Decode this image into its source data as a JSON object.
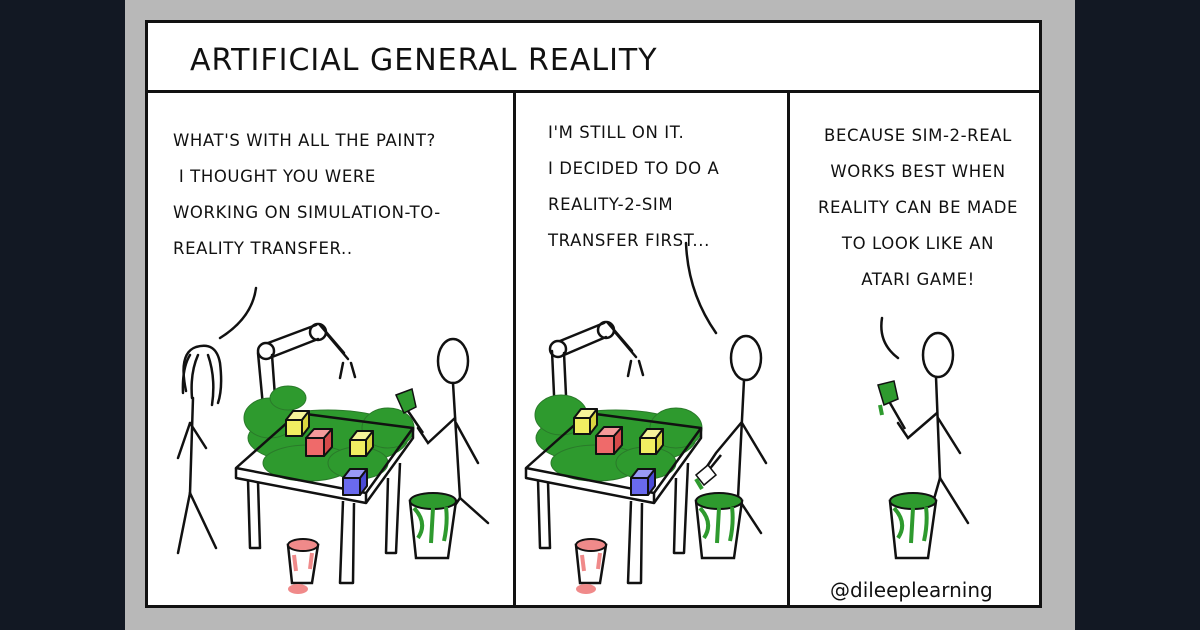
{
  "comic": {
    "title": "ARTIFICIAL GENERAL REALITY",
    "panels": [
      {
        "dialog": "WHAT'S WITH ALL THE PAINT?\n I THOUGHT YOU WERE\nWORKING ON SIMULATION-TO-\nREALITY TRANSFER.."
      },
      {
        "dialog": "I'M STILL ON IT.\nI DECIDED TO DO A\nREALITY-2-SIM\nTRANSFER FIRST..."
      },
      {
        "dialog": "BECAUSE SIM-2-REAL\nWORKS BEST WHEN\nREALITY CAN BE MADE\nTO LOOK LIKE AN\nATARI GAME!"
      }
    ],
    "credit": "@dileeplearning"
  },
  "colors": {
    "background": "#121823",
    "frame_background": "#b8b8b8",
    "paint_green": "#2e9a2e",
    "cube_yellow": "#f2ee62",
    "cube_red": "#ef6a6a",
    "cube_blue": "#6a6aee",
    "pink_paint": "#f08a8a"
  }
}
